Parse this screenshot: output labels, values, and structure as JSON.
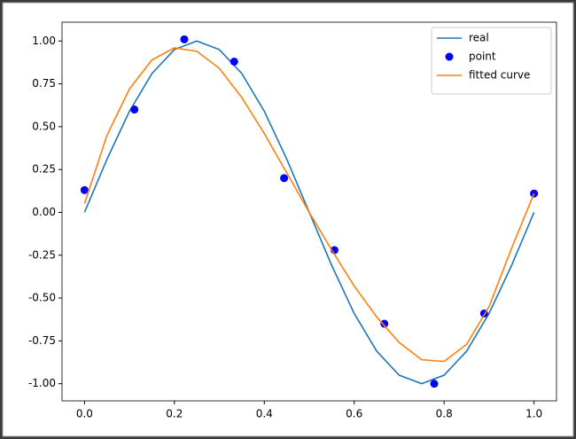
{
  "chart_data": {
    "type": "line",
    "series": [
      {
        "name": "real",
        "type": "line",
        "color": "#1f77b4",
        "x": [
          0,
          0.05,
          0.1,
          0.15,
          0.2,
          0.25,
          0.3,
          0.35,
          0.4,
          0.45,
          0.5,
          0.55,
          0.6,
          0.65,
          0.7,
          0.75,
          0.8,
          0.85,
          0.9,
          0.95,
          1.0
        ],
        "values": [
          0,
          0.31,
          0.59,
          0.81,
          0.95,
          1.0,
          0.95,
          0.81,
          0.59,
          0.31,
          0,
          -0.31,
          -0.59,
          -0.81,
          -0.95,
          -1.0,
          -0.95,
          -0.81,
          -0.59,
          -0.31,
          0
        ]
      },
      {
        "name": "point",
        "type": "scatter",
        "color": "#0000ff",
        "x": [
          0,
          0.111,
          0.222,
          0.333,
          0.444,
          0.556,
          0.667,
          0.778,
          0.889,
          1.0
        ],
        "values": [
          0.13,
          0.6,
          1.01,
          0.88,
          0.2,
          -0.22,
          -0.65,
          -1.0,
          -0.59,
          0.11
        ]
      },
      {
        "name": "fitted curve",
        "type": "line",
        "color": "#ff7f0e",
        "x": [
          0,
          0.05,
          0.1,
          0.15,
          0.2,
          0.25,
          0.3,
          0.35,
          0.4,
          0.45,
          0.5,
          0.55,
          0.6,
          0.65,
          0.7,
          0.75,
          0.8,
          0.85,
          0.9,
          0.95,
          1.0
        ],
        "values": [
          0.05,
          0.45,
          0.72,
          0.89,
          0.96,
          0.94,
          0.84,
          0.67,
          0.46,
          0.23,
          0.0,
          -0.22,
          -0.43,
          -0.61,
          -0.76,
          -0.86,
          -0.87,
          -0.77,
          -0.55,
          -0.21,
          0.11
        ]
      }
    ],
    "xlim": [
      -0.05,
      1.05
    ],
    "ylim": [
      -1.1,
      1.11
    ],
    "xticks": [
      {
        "value": 0,
        "label": "0.0"
      },
      0.2,
      0.4,
      0.6,
      0.8,
      {
        "value": 1,
        "label": "1.0"
      }
    ],
    "yticks": [
      {
        "value": 1,
        "label": "1.00"
      },
      0.75,
      {
        "value": 0.5,
        "label": "0.50"
      },
      0.25,
      {
        "value": 0,
        "label": "0.00"
      },
      -0.25,
      {
        "value": -0.5,
        "label": "-0.50"
      },
      -0.75,
      {
        "value": -1,
        "label": "-1.00"
      }
    ],
    "legend": "upper right"
  }
}
